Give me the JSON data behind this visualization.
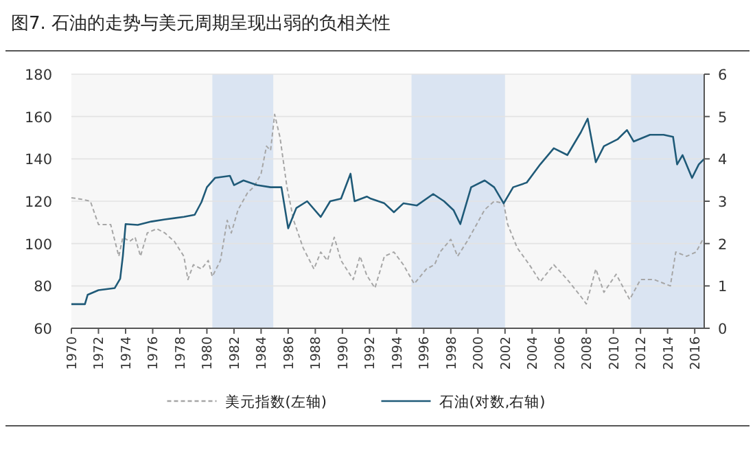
{
  "chart_data": {
    "type": "line",
    "title": "图7. 石油的走势与美元周期呈现出弱的负相关性",
    "xlim": [
      1970,
      2016.7
    ],
    "xticks": [
      1970,
      1972,
      1974,
      1976,
      1978,
      1980,
      1982,
      1984,
      1986,
      1988,
      1990,
      1992,
      1994,
      1996,
      1998,
      2000,
      2002,
      2004,
      2006,
      2008,
      2010,
      2012,
      2014,
      2016
    ],
    "ylim": [
      60,
      180
    ],
    "yticks": [
      60,
      80,
      100,
      120,
      140,
      160,
      180
    ],
    "y2lim": [
      0,
      6
    ],
    "y2ticks": [
      0,
      1,
      2,
      3,
      4,
      5,
      6
    ],
    "grid": "y",
    "legend": "bottom",
    "bands": [
      {
        "axis": "x",
        "from": 1980.4,
        "to": 1984.9,
        "color": "#dae4f2"
      },
      {
        "axis": "x",
        "from": 1995.1,
        "to": 2002.0,
        "color": "#dae4f2"
      },
      {
        "axis": "x",
        "from": 2011.3,
        "to": 2016.7,
        "color": "#dae4f2"
      }
    ],
    "series": [
      {
        "name": "美元指数(左轴)",
        "color": "#a6a6a6",
        "line_style": "dashed",
        "x": [
          1970,
          1970.7,
          1971.4,
          1972,
          1972.9,
          1973.5,
          1973.8,
          1974.3,
          1974.7,
          1975.1,
          1975.6,
          1976.3,
          1976.9,
          1977.6,
          1978.3,
          1978.6,
          1979,
          1979.6,
          1980.1,
          1980.4,
          1981,
          1981.5,
          1981.8,
          1982.3,
          1983,
          1983.5,
          1984,
          1984.4,
          1984.7,
          1985,
          1985.4,
          1985.9,
          1986.4,
          1987.1,
          1987.9,
          1988.4,
          1988.9,
          1989.4,
          1989.9,
          1990.8,
          1991.3,
          1991.8,
          1992.4,
          1993.1,
          1993.8,
          1994.5,
          1995.3,
          1996.2,
          1996.8,
          1997.2,
          1998,
          1998.5,
          1999.2,
          1999.9,
          2000.5,
          2001.2,
          2001.9,
          2002.2,
          2002.9,
          2003.8,
          2004.6,
          2005.6,
          2006.6,
          2007.6,
          2008,
          2008.7,
          2009.3,
          2010.2,
          2011.2,
          2012,
          2013,
          2014.2,
          2014.6,
          2015.4,
          2016.1,
          2016.6
        ],
        "values": [
          121.6,
          121,
          120,
          109,
          109,
          94,
          103,
          101,
          103,
          94,
          105,
          107,
          105,
          101,
          94,
          83,
          90,
          88,
          92,
          84.4,
          92,
          111,
          105,
          116,
          124,
          127,
          133,
          146,
          144,
          161,
          150,
          127,
          111,
          98,
          88,
          96,
          92,
          103,
          92,
          83,
          94,
          85,
          79,
          94,
          96,
          90,
          81,
          88,
          90,
          96,
          102,
          94,
          101,
          109,
          116,
          120,
          119,
          109,
          98,
          90,
          82,
          90,
          83,
          75,
          71.5,
          88,
          77,
          85.5,
          73.6,
          83,
          83,
          80,
          96,
          94,
          96,
          102
        ]
      },
      {
        "name": "石油(对数,右轴)",
        "color": "#1f5a78",
        "line_style": "solid",
        "axis": "y2",
        "x": [
          1970,
          1971,
          1971.2,
          1972,
          1973.2,
          1973.6,
          1973.8,
          1974,
          1974.9,
          1975.9,
          1976.9,
          1978.3,
          1979.1,
          1979.6,
          1980,
          1980.6,
          1981.7,
          1982,
          1982.7,
          1983.7,
          1984.7,
          1985.5,
          1986,
          1986.6,
          1987.4,
          1988.4,
          1989.1,
          1989.9,
          1990.6,
          1990.9,
          1991.8,
          1992.1,
          1993.1,
          1993.8,
          1994.5,
          1995.5,
          1996.7,
          1997.5,
          1998.2,
          1998.7,
          1999.5,
          2000.5,
          2001.2,
          2001.9,
          2002.6,
          2003.6,
          2004.6,
          2005.6,
          2006.6,
          2007.6,
          2008.1,
          2008.7,
          2009.3,
          2010.3,
          2011,
          2011.5,
          2012.7,
          2013.7,
          2014.4,
          2014.7,
          2015.1,
          2015.8,
          2016.3,
          2016.7
        ],
        "values": [
          0.57,
          0.57,
          0.79,
          0.9,
          0.95,
          1.17,
          1.71,
          2.46,
          2.44,
          2.52,
          2.57,
          2.63,
          2.68,
          2.98,
          3.33,
          3.55,
          3.6,
          3.38,
          3.49,
          3.38,
          3.33,
          3.33,
          2.36,
          2.84,
          3.0,
          2.63,
          3.0,
          3.06,
          3.65,
          3.0,
          3.11,
          3.06,
          2.95,
          2.74,
          2.95,
          2.9,
          3.17,
          3.0,
          2.79,
          2.46,
          3.33,
          3.49,
          3.33,
          2.95,
          3.33,
          3.44,
          3.87,
          4.25,
          4.09,
          4.63,
          4.95,
          3.92,
          4.3,
          4.46,
          4.68,
          4.41,
          4.57,
          4.57,
          4.52,
          3.87,
          4.09,
          3.55,
          3.87,
          4.0
        ]
      }
    ]
  }
}
